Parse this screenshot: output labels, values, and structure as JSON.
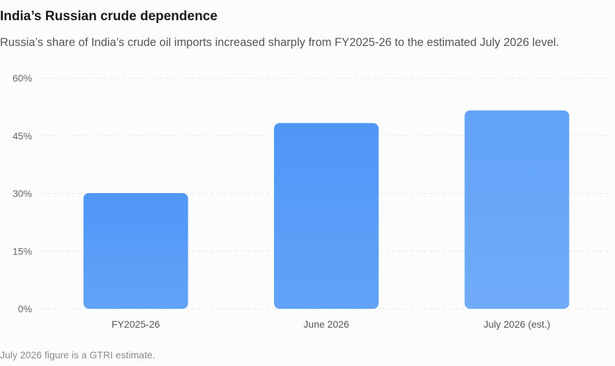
{
  "chart_data": {
    "type": "bar",
    "title": "India’s Russian crude dependence",
    "subtitle": "Russia’s share of India’s crude oil imports increased sharply from FY2025-26 to the estimated July 2026 level.",
    "categories": [
      "FY2025-26",
      "June 2026",
      "July 2026 (est.)"
    ],
    "values": [
      30.1,
      48.3,
      51.6
    ],
    "ylim": [
      0,
      60
    ],
    "yticks": [
      0,
      15,
      30,
      45,
      60
    ],
    "ytick_labels": [
      "0%",
      "15%",
      "30%",
      "45%",
      "60%"
    ],
    "xlabel": "",
    "ylabel": "",
    "grid": true,
    "legend": "none",
    "bar_color": "#4f96f7",
    "note": "July 2026 figure is a GTRI estimate."
  }
}
